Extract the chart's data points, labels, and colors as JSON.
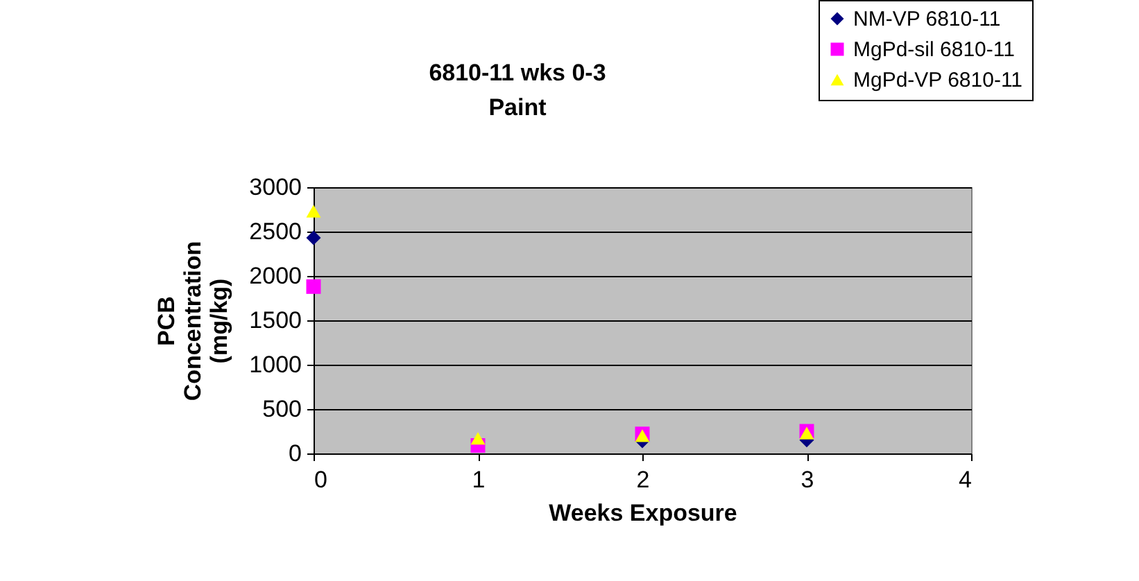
{
  "chart_data": {
    "type": "scatter",
    "title": "6810-11 wks 0-3\nPaint",
    "xlabel": "Weeks Exposure",
    "ylabel": "PCB\nConcentration\n(mg/kg)",
    "x": [
      0,
      1,
      2,
      3
    ],
    "series": [
      {
        "name": "NM-VP 6810-11",
        "color": "#000080",
        "marker": "diamond",
        "values": [
          2430,
          null,
          140,
          150
        ]
      },
      {
        "name": "MgPd-sil 6810-11",
        "color": "#ff00ff",
        "marker": "square",
        "values": [
          1880,
          90,
          220,
          250
        ]
      },
      {
        "name": "MgPd-VP 6810-11",
        "color": "#ffff00",
        "marker": "triangle",
        "values": [
          2730,
          170,
          200,
          230
        ]
      }
    ],
    "xlim": [
      0,
      4
    ],
    "xticks": [
      0,
      1,
      2,
      3,
      4
    ],
    "ylim": [
      0,
      3000
    ],
    "yticks": [
      0,
      500,
      1000,
      1500,
      2000,
      2500,
      3000
    ],
    "grid": "y",
    "legend": "top right"
  }
}
